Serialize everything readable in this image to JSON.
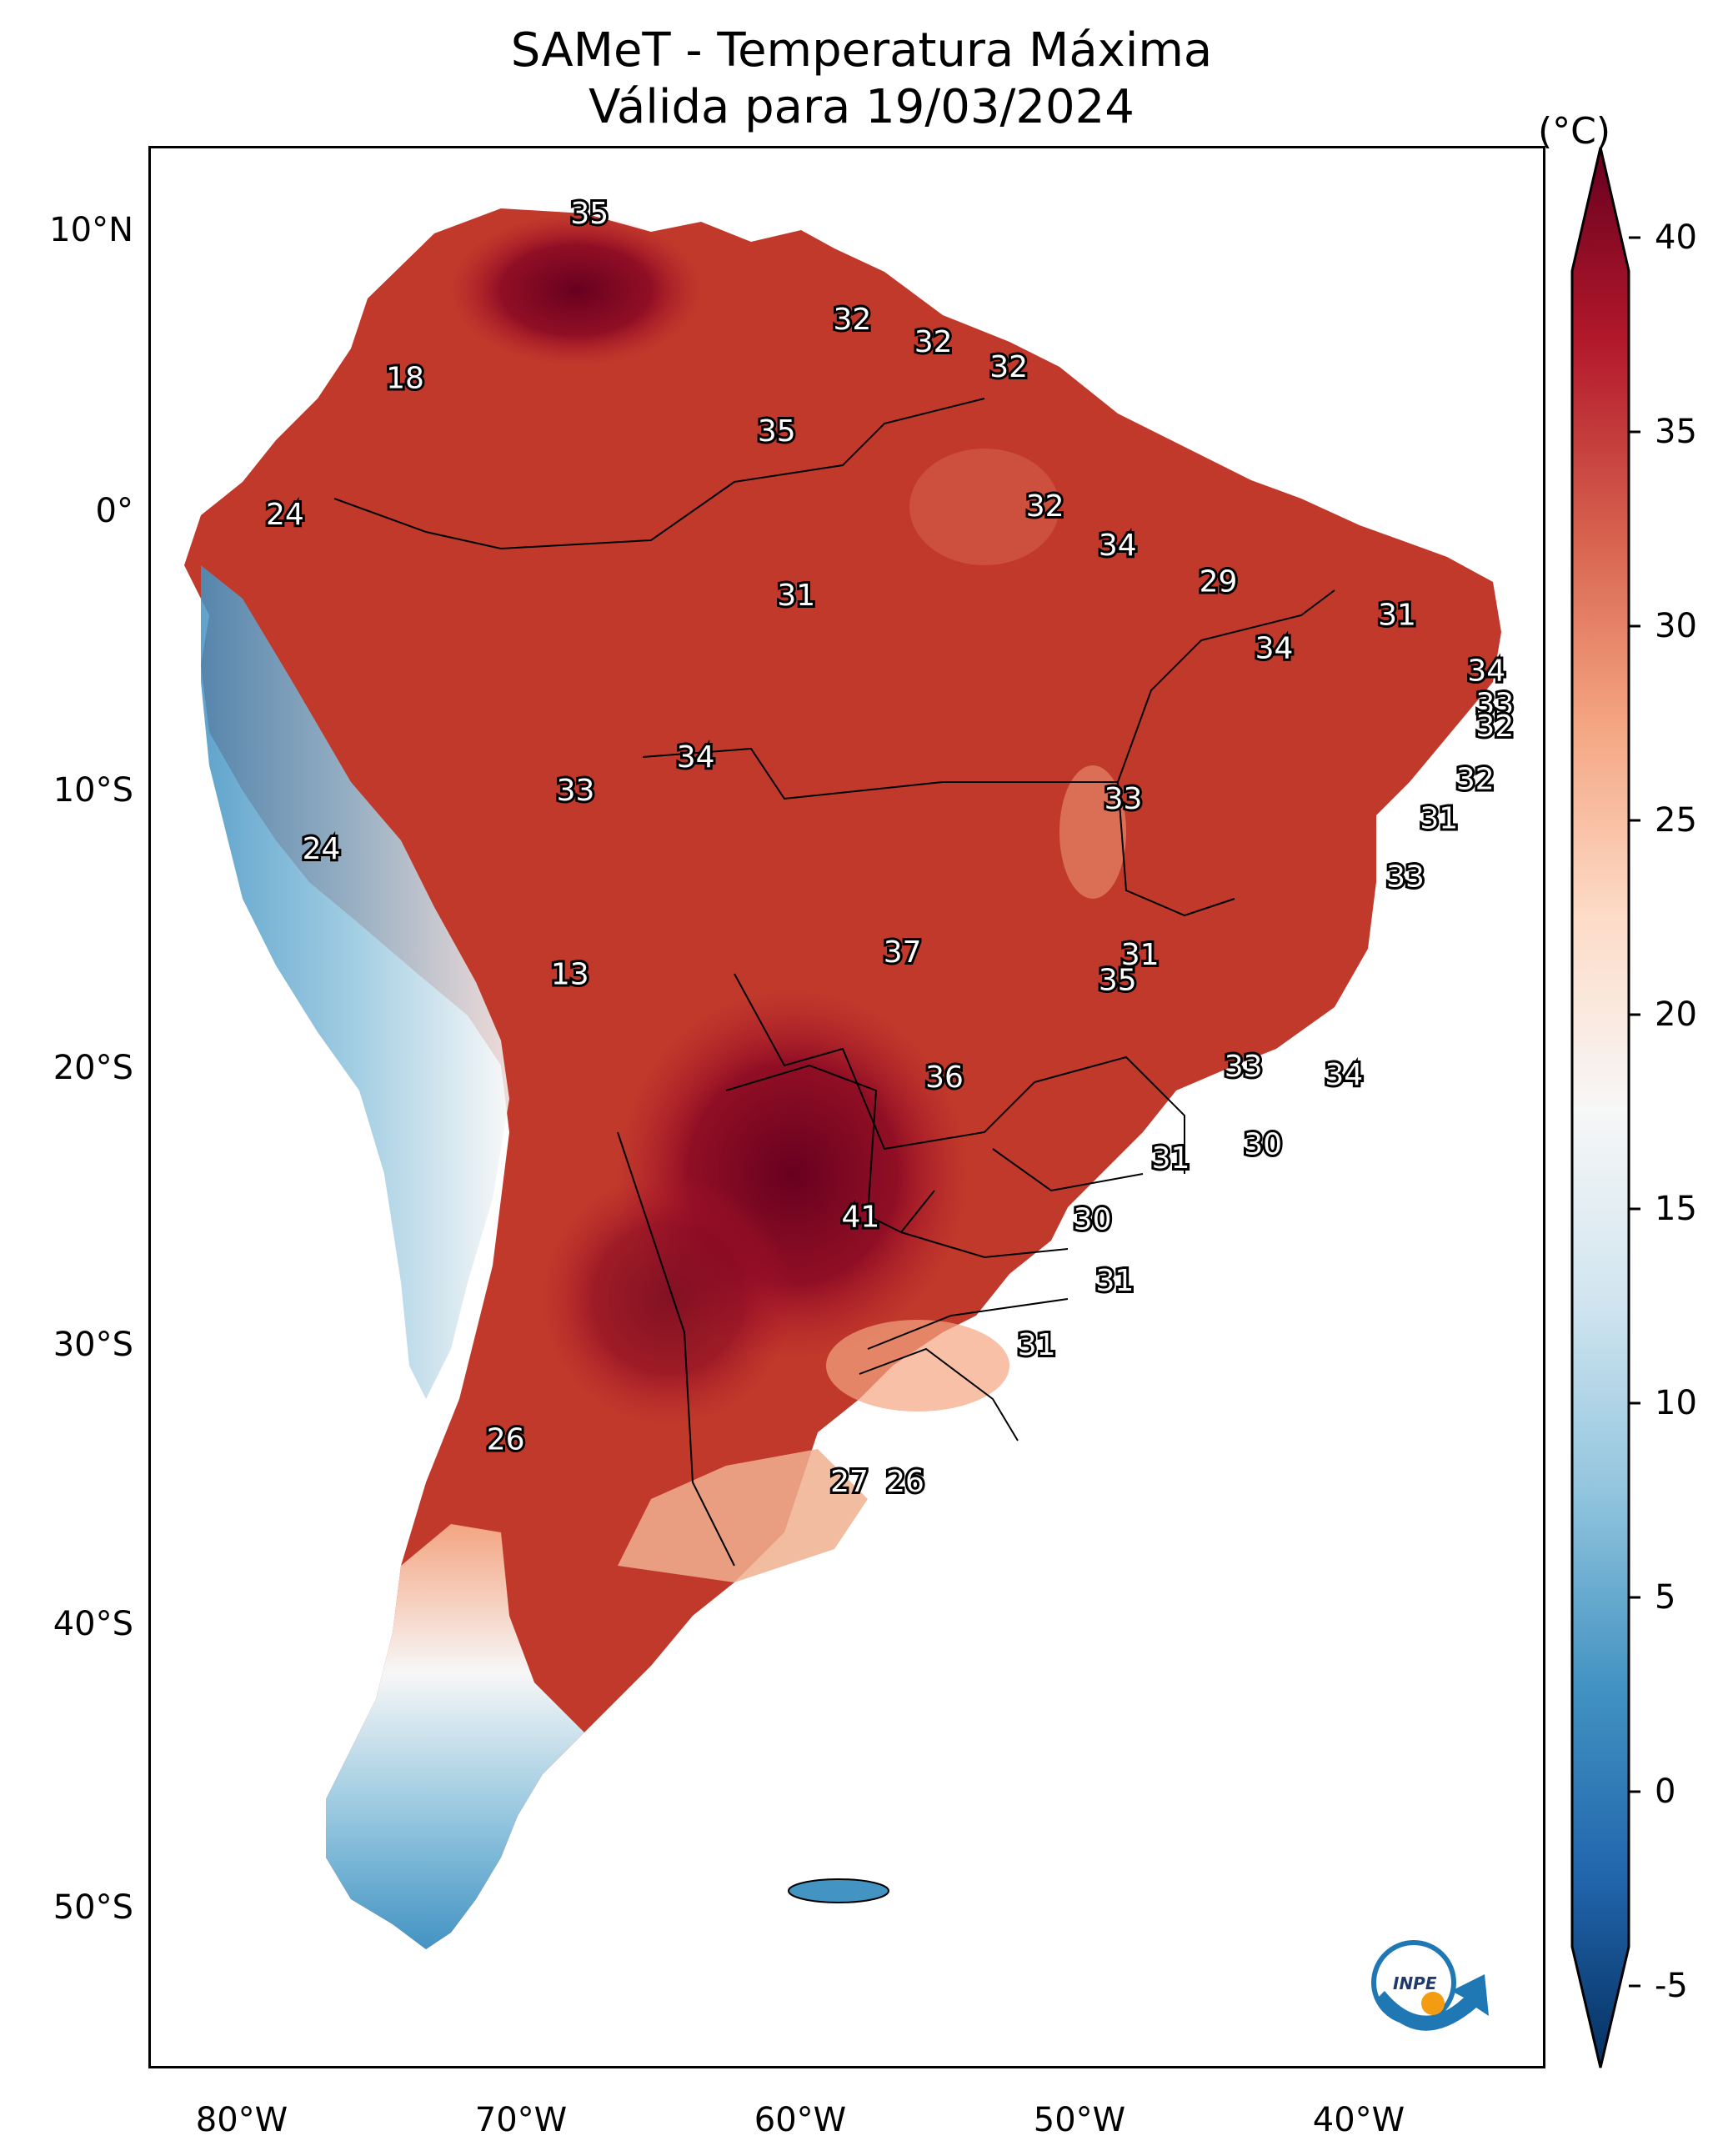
{
  "title": {
    "line1": "SAMeT - Temperatura Máxima",
    "line2": "Válida para 19/03/2024"
  },
  "colorbar": {
    "unit": "(°C)",
    "ticks": [
      "40",
      "35",
      "30",
      "25",
      "20",
      "15",
      "10",
      "5",
      "0",
      "-5"
    ],
    "range": [
      -5,
      40
    ],
    "colors": [
      "#053061",
      "#2166ac",
      "#4393c3",
      "#92c5de",
      "#d1e5f0",
      "#f7f7f7",
      "#fddbc7",
      "#f4a582",
      "#d6604d",
      "#b2182b",
      "#67001f"
    ]
  },
  "axes": {
    "lat_labels": [
      "10°N",
      "0°",
      "10°S",
      "20°S",
      "30°S",
      "40°S",
      "50°S"
    ],
    "lon_labels": [
      "80°W",
      "70°W",
      "60°W",
      "50°W",
      "40°W"
    ]
  },
  "map_labels": [
    {
      "text": "35",
      "lon": -67.3,
      "lat": 10.6
    },
    {
      "text": "32",
      "lon": -57.9,
      "lat": 6.8
    },
    {
      "text": "32",
      "lon": -55.0,
      "lat": 6.0
    },
    {
      "text": "32",
      "lon": -52.3,
      "lat": 5.1
    },
    {
      "text": "18",
      "lon": -73.9,
      "lat": 4.7
    },
    {
      "text": "35",
      "lon": -60.6,
      "lat": 2.8
    },
    {
      "text": "32",
      "lon": -51.0,
      "lat": 0.1
    },
    {
      "text": "24",
      "lon": -78.2,
      "lat": -0.2
    },
    {
      "text": "34",
      "lon": -48.4,
      "lat": -1.3
    },
    {
      "text": "29",
      "lon": -44.8,
      "lat": -2.6
    },
    {
      "text": "31",
      "lon": -59.9,
      "lat": -3.1
    },
    {
      "text": "31",
      "lon": -38.4,
      "lat": -3.8
    },
    {
      "text": "34",
      "lon": -42.8,
      "lat": -5.0
    },
    {
      "text": "34",
      "lon": -35.2,
      "lat": -5.8
    },
    {
      "text": "33",
      "lon": -34.9,
      "lat": -7.0
    },
    {
      "text": "32",
      "lon": -34.9,
      "lat": -7.8
    },
    {
      "text": "34",
      "lon": -63.5,
      "lat": -8.9
    },
    {
      "text": "32",
      "lon": -35.6,
      "lat": -9.7
    },
    {
      "text": "33",
      "lon": -67.8,
      "lat": -10.1
    },
    {
      "text": "33",
      "lon": -48.2,
      "lat": -10.4
    },
    {
      "text": "31",
      "lon": -36.9,
      "lat": -11.1
    },
    {
      "text": "24",
      "lon": -76.9,
      "lat": -12.2
    },
    {
      "text": "33",
      "lon": -38.1,
      "lat": -13.2
    },
    {
      "text": "37",
      "lon": -56.1,
      "lat": -15.9
    },
    {
      "text": "31",
      "lon": -47.6,
      "lat": -16.0
    },
    {
      "text": "35",
      "lon": -48.4,
      "lat": -16.9
    },
    {
      "text": "13",
      "lon": -68.0,
      "lat": -16.7
    },
    {
      "text": "36",
      "lon": -54.6,
      "lat": -20.4
    },
    {
      "text": "33",
      "lon": -43.9,
      "lat": -20.0
    },
    {
      "text": "34",
      "lon": -40.3,
      "lat": -20.3
    },
    {
      "text": "30",
      "lon": -43.2,
      "lat": -22.8
    },
    {
      "text": "31",
      "lon": -46.5,
      "lat": -23.3
    },
    {
      "text": "41",
      "lon": -57.6,
      "lat": -25.4
    },
    {
      "text": "30",
      "lon": -49.3,
      "lat": -25.5
    },
    {
      "text": "31",
      "lon": -48.5,
      "lat": -27.7
    },
    {
      "text": "31",
      "lon": -51.3,
      "lat": -30.0
    },
    {
      "text": "26",
      "lon": -70.3,
      "lat": -33.4
    },
    {
      "text": "27",
      "lon": -58.0,
      "lat": -34.9
    },
    {
      "text": "26",
      "lon": -56.0,
      "lat": -34.9
    }
  ]
}
